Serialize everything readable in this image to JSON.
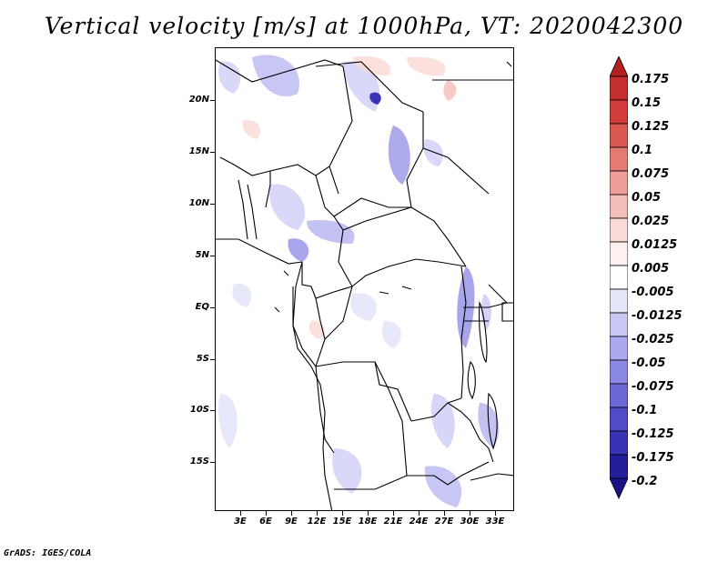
{
  "title": "Vertical velocity [m/s] at 1000hPa, VT: 2020042300",
  "footer": "GrADS: IGES/COLA",
  "map": {
    "lat_labels": [
      "20N",
      "15N",
      "10N",
      "5N",
      "EQ",
      "5S",
      "10S",
      "15S"
    ],
    "lon_labels": [
      "3E",
      "6E",
      "9E",
      "12E",
      "15E",
      "18E",
      "21E",
      "24E",
      "27E",
      "30E",
      "33E"
    ],
    "lon_range": [
      0,
      35
    ],
    "lat_range": [
      -20,
      25
    ]
  },
  "colorbar": {
    "labels": [
      "0.175",
      "0.15",
      "0.125",
      "0.1",
      "0.075",
      "0.05",
      "0.025",
      "0.0125",
      "0.005",
      "-0.005",
      "-0.0125",
      "-0.025",
      "-0.05",
      "-0.075",
      "-0.1",
      "-0.125",
      "-0.175",
      "-0.2"
    ],
    "colors": [
      "#b3201f",
      "#c42e2c",
      "#d13c3a",
      "#dc5752",
      "#e57a73",
      "#ee9e97",
      "#f5bdb8",
      "#fad9d6",
      "#fdf0ee",
      "#ffffff",
      "#e6e6fb",
      "#c9c8f5",
      "#aaa8ee",
      "#8b87e4",
      "#6d67d8",
      "#524bc9",
      "#3a32b6",
      "#241d9c",
      "#1a1187"
    ]
  }
}
